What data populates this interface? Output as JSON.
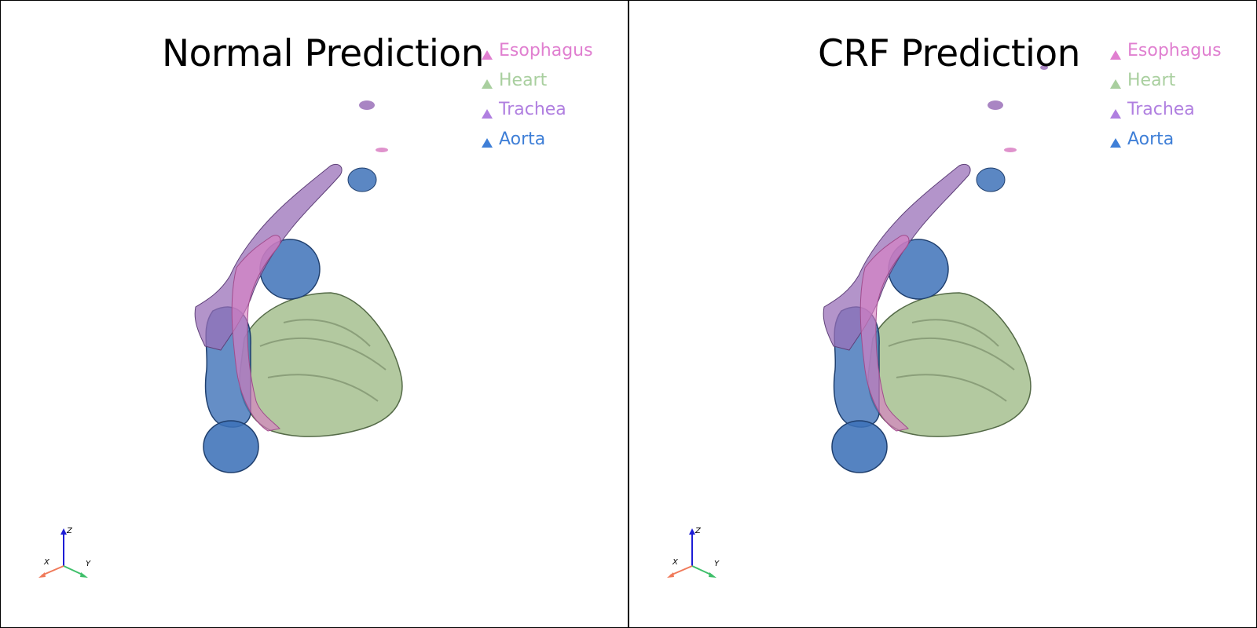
{
  "panels": [
    {
      "title": "Normal Prediction",
      "legend": [
        {
          "label": "Esophagus",
          "color": "#e07fd0"
        },
        {
          "label": "Heart",
          "color": "#a9cf9f"
        },
        {
          "label": "Trachea",
          "color": "#b07fe0"
        },
        {
          "label": "Aorta",
          "color": "#3f7fd7"
        }
      ],
      "axes": {
        "x": "X",
        "y": "Y",
        "z": "Z"
      }
    },
    {
      "title": "CRF Prediction",
      "legend": [
        {
          "label": "Esophagus",
          "color": "#e07fd0"
        },
        {
          "label": "Heart",
          "color": "#a9cf9f"
        },
        {
          "label": "Trachea",
          "color": "#b07fe0"
        },
        {
          "label": "Aorta",
          "color": "#3f7fd7"
        }
      ],
      "axes": {
        "x": "X",
        "y": "Y",
        "z": "Z"
      }
    }
  ],
  "colors": {
    "esophagus": "#d97fc3",
    "heart": "#a6bf8f",
    "trachea": "#9a70b8",
    "aorta": "#3e72b8"
  }
}
